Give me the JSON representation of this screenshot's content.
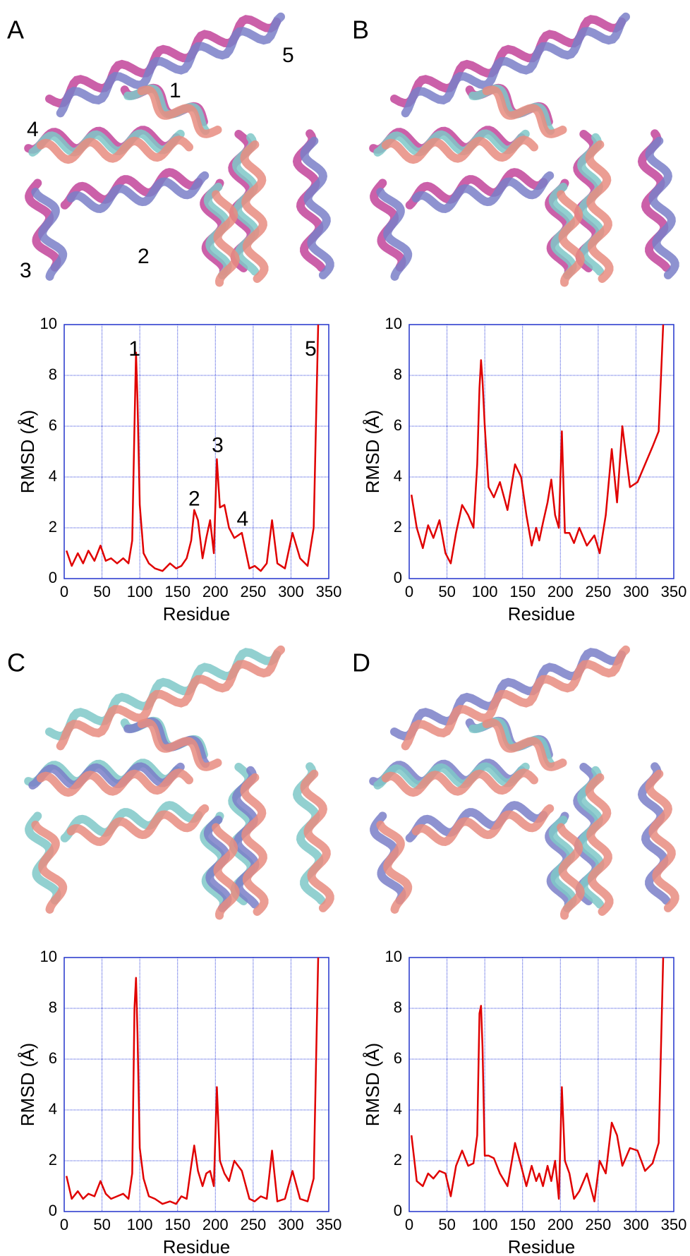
{
  "panels": [
    {
      "label": "A",
      "structure_labels": [
        "1",
        "2",
        "3",
        "4",
        "5"
      ]
    },
    {
      "label": "B"
    },
    {
      "label": "C"
    },
    {
      "label": "D"
    }
  ],
  "chart_data": [
    {
      "type": "line",
      "xlabel": "Residue",
      "ylabel": "RMSD (Å)",
      "xlim": [
        0,
        350
      ],
      "ylim": [
        0,
        10
      ],
      "xticks": [
        0,
        50,
        100,
        150,
        200,
        250,
        300,
        350
      ],
      "yticks": [
        0,
        2,
        4,
        6,
        8,
        10
      ],
      "grid": true,
      "annotations": [
        "1",
        "2",
        "3",
        "4",
        "5"
      ],
      "x": [
        3,
        10,
        18,
        25,
        32,
        40,
        48,
        55,
        62,
        70,
        78,
        85,
        90,
        93,
        95,
        97,
        100,
        105,
        112,
        120,
        130,
        140,
        148,
        155,
        162,
        168,
        172,
        177,
        183,
        188,
        193,
        198,
        202,
        206,
        212,
        218,
        225,
        235,
        245,
        252,
        260,
        268,
        275,
        282,
        292,
        302,
        312,
        322,
        330,
        336
      ],
      "series": [
        {
          "color": "#e00000",
          "values": [
            1.1,
            0.5,
            1.0,
            0.6,
            1.1,
            0.7,
            1.3,
            0.7,
            0.8,
            0.6,
            0.8,
            0.6,
            1.5,
            6.0,
            8.9,
            7.0,
            2.9,
            1.0,
            0.6,
            0.4,
            0.3,
            0.6,
            0.4,
            0.5,
            0.8,
            1.5,
            2.7,
            2.3,
            0.8,
            1.6,
            2.3,
            1.0,
            4.7,
            2.8,
            2.9,
            2.0,
            1.6,
            1.8,
            0.4,
            0.5,
            0.3,
            0.6,
            2.3,
            0.6,
            0.4,
            1.8,
            0.8,
            0.5,
            2.0,
            10
          ]
        }
      ]
    },
    {
      "type": "line",
      "xlabel": "Residue",
      "ylabel": "RMSD (Å)",
      "xlim": [
        0,
        350
      ],
      "ylim": [
        0,
        10
      ],
      "xticks": [
        0,
        50,
        100,
        150,
        200,
        250,
        300,
        350
      ],
      "yticks": [
        0,
        2,
        4,
        6,
        8,
        10
      ],
      "grid": true,
      "x": [
        3,
        10,
        18,
        25,
        32,
        40,
        48,
        55,
        62,
        70,
        78,
        85,
        90,
        93,
        95,
        97,
        100,
        105,
        112,
        120,
        130,
        140,
        148,
        155,
        162,
        168,
        172,
        177,
        183,
        188,
        193,
        198,
        202,
        206,
        212,
        218,
        225,
        235,
        245,
        252,
        260,
        268,
        275,
        282,
        292,
        302,
        312,
        322,
        330,
        336
      ],
      "series": [
        {
          "color": "#e00000",
          "values": [
            3.3,
            2.0,
            1.2,
            2.1,
            1.6,
            2.3,
            1.0,
            0.6,
            1.8,
            2.9,
            2.5,
            2.0,
            4.5,
            7.5,
            8.6,
            7.8,
            6.0,
            3.6,
            3.2,
            3.8,
            2.7,
            4.5,
            4.0,
            2.5,
            1.3,
            2.0,
            1.5,
            2.2,
            3.0,
            3.9,
            2.5,
            2.0,
            5.8,
            1.8,
            1.8,
            1.4,
            2.0,
            1.3,
            1.7,
            1.0,
            2.5,
            5.1,
            3.0,
            6.0,
            3.6,
            3.8,
            4.5,
            5.2,
            5.8,
            10
          ]
        }
      ]
    },
    {
      "type": "line",
      "xlabel": "Residue",
      "ylabel": "RMSD (Å)",
      "xlim": [
        0,
        350
      ],
      "ylim": [
        0,
        10
      ],
      "xticks": [
        0,
        50,
        100,
        150,
        200,
        250,
        300,
        350
      ],
      "yticks": [
        0,
        2,
        4,
        6,
        8,
        10
      ],
      "grid": true,
      "x": [
        3,
        10,
        18,
        25,
        32,
        40,
        48,
        55,
        62,
        70,
        78,
        85,
        90,
        93,
        95,
        97,
        100,
        105,
        112,
        120,
        130,
        140,
        148,
        155,
        162,
        168,
        172,
        177,
        183,
        188,
        193,
        198,
        202,
        206,
        212,
        218,
        225,
        235,
        245,
        252,
        260,
        268,
        275,
        282,
        292,
        302,
        312,
        322,
        330,
        336
      ],
      "series": [
        {
          "color": "#e00000",
          "values": [
            1.4,
            0.5,
            0.8,
            0.5,
            0.7,
            0.6,
            1.2,
            0.7,
            0.5,
            0.6,
            0.7,
            0.5,
            1.5,
            8.0,
            9.2,
            7.0,
            2.5,
            1.3,
            0.6,
            0.5,
            0.3,
            0.4,
            0.3,
            0.6,
            0.5,
            1.8,
            2.6,
            1.6,
            1.0,
            1.5,
            1.6,
            1.0,
            4.9,
            2.0,
            1.5,
            1.2,
            2.0,
            1.6,
            0.5,
            0.4,
            0.6,
            0.5,
            2.4,
            0.4,
            0.5,
            1.6,
            0.5,
            0.4,
            1.3,
            10
          ]
        }
      ]
    },
    {
      "type": "line",
      "xlabel": "Residue",
      "ylabel": "RMSD (Å)",
      "xlim": [
        0,
        350
      ],
      "ylim": [
        0,
        10
      ],
      "xticks": [
        0,
        50,
        100,
        150,
        200,
        250,
        300,
        350
      ],
      "yticks": [
        0,
        2,
        4,
        6,
        8,
        10
      ],
      "grid": true,
      "x": [
        3,
        10,
        18,
        25,
        32,
        40,
        48,
        55,
        62,
        70,
        78,
        85,
        90,
        93,
        95,
        97,
        100,
        105,
        112,
        120,
        130,
        140,
        148,
        155,
        162,
        168,
        172,
        177,
        183,
        188,
        193,
        198,
        202,
        206,
        212,
        218,
        225,
        235,
        245,
        252,
        260,
        268,
        275,
        282,
        292,
        302,
        312,
        322,
        330,
        336
      ],
      "series": [
        {
          "color": "#e00000",
          "values": [
            3.0,
            1.2,
            1.0,
            1.5,
            1.3,
            1.6,
            1.5,
            0.6,
            1.8,
            2.4,
            1.8,
            1.9,
            3.0,
            7.8,
            8.1,
            6.5,
            2.2,
            2.2,
            2.1,
            1.5,
            1.0,
            2.7,
            1.8,
            1.0,
            1.8,
            1.2,
            1.5,
            1.0,
            1.8,
            1.2,
            2.0,
            0.5,
            4.9,
            2.0,
            1.5,
            0.5,
            0.8,
            1.5,
            0.4,
            2.0,
            1.5,
            3.5,
            3.0,
            1.8,
            2.5,
            2.4,
            1.6,
            1.9,
            2.7,
            10
          ]
        }
      ]
    }
  ]
}
